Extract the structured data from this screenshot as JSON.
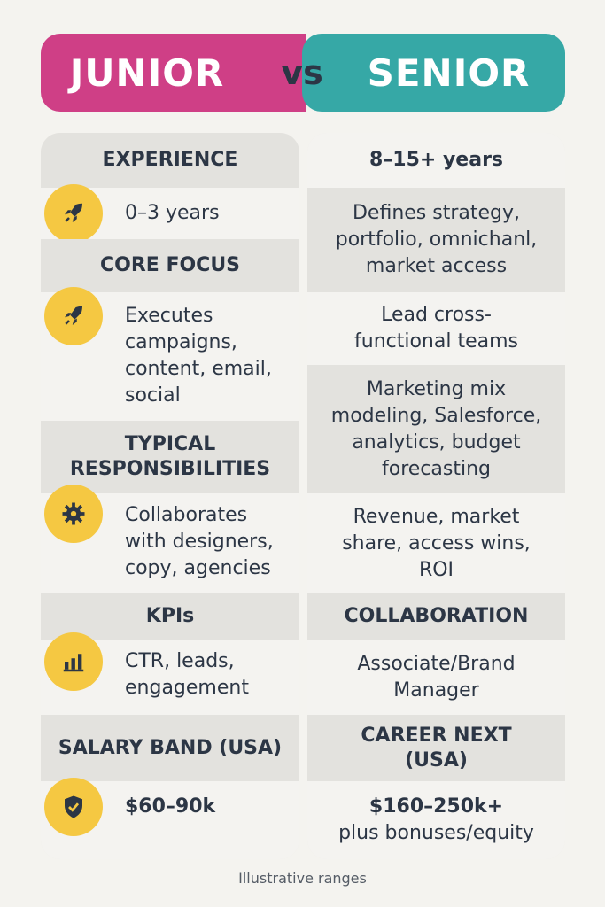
{
  "header": {
    "left_title": "JUNIOR",
    "vs": "vs",
    "right_title": "SENIOR",
    "left_color": "#cf3f86",
    "right_color": "#36a8a6"
  },
  "left": {
    "experience_head": "EXPERIENCE",
    "experience_value": "0–3 years",
    "core_focus_head": "CORE FOCUS",
    "core_focus_value": "Executes campaigns, content, email, social",
    "responsibilities_head": "TYPICAL RESPONSIBILITIES",
    "responsibilities_value": "Collaborates with designers, copy, agencies",
    "kpis_head": "KPIs",
    "kpis_value": "CTR, leads, engagement",
    "salary_head": "SALARY BAND (USA)",
    "salary_value": "$60–90k",
    "icons": [
      "rocket-icon",
      "rocket-icon",
      "gear-icon",
      "bar-chart-icon",
      "shield-check-icon"
    ]
  },
  "right": {
    "experience_value": "8–15+ years",
    "core_focus_value": "Defines strategy, portfolio, omnichanl, market access",
    "lead_value": "Lead cross-functional teams",
    "tools_value": "Marketing mix modeling, Salesforce, analytics, budget forecasting",
    "kpis_value": "Revenue, market share, access wins, ROI",
    "collab_head": "COLLABORATION",
    "collab_value": "Associate/Brand Manager",
    "career_head": "CAREER NEXT (USA)",
    "career_value_line1": "$160–250k+",
    "career_value_line2": "plus bonuses/equity"
  },
  "footnote": "Illustrative ranges",
  "accent_icon_color": "#f5c842"
}
